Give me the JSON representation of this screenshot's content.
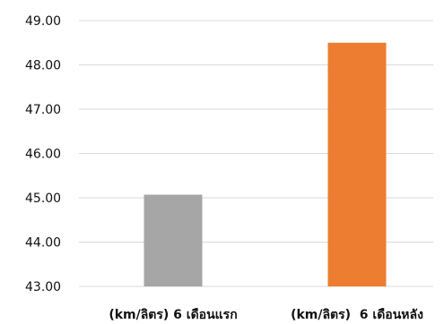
{
  "chart_data": {
    "type": "bar",
    "title": "",
    "xlabel": "",
    "ylabel": "",
    "categories": [
      "(km/ลิตร) 6 เดือนแรก",
      "(km/ลิตร)  6 เดือนหลัง"
    ],
    "values": [
      45.07,
      48.5
    ],
    "bar_colors": [
      "#a6a6a6",
      "#ed7d31"
    ],
    "ylim": [
      43,
      49
    ],
    "yticks": [
      43,
      44,
      45,
      46,
      47,
      48,
      49
    ],
    "ytick_labels": [
      "43.00",
      "44.00",
      "45.00",
      "46.00",
      "47.00",
      "48.00",
      "49.00"
    ],
    "grid": true,
    "legend": "none"
  }
}
